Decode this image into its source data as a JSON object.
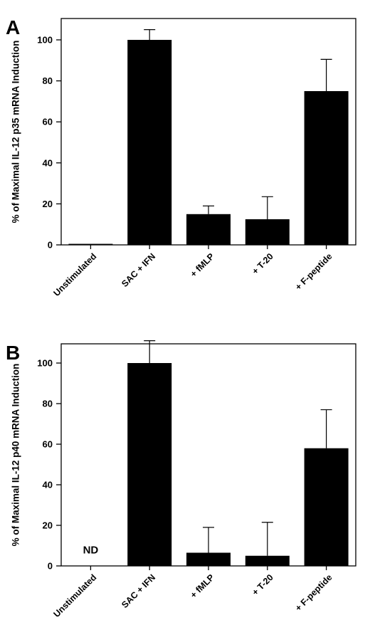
{
  "chart_data": [
    {
      "type": "bar",
      "panel_label": "A",
      "ylabel": "% of Maximal IL-12 p35 mRNA Induction",
      "xlabel": "",
      "categories": [
        "Unstimulated",
        "SAC + IFN",
        "+ fMLP",
        "+ T-20",
        "+ F-peptide"
      ],
      "values": [
        0.5,
        100,
        15,
        12.5,
        75
      ],
      "errors": [
        0,
        5,
        4,
        11,
        15.5
      ],
      "ylim": [
        0,
        100
      ],
      "yticks": [
        0,
        20,
        40,
        60,
        80,
        100
      ],
      "bar_color": "#000000",
      "annotations": []
    },
    {
      "type": "bar",
      "panel_label": "B",
      "ylabel": "% of Maximal IL-12 p40 mRNA Induction",
      "xlabel": "",
      "categories": [
        "Unstimulated",
        "SAC + IFN",
        "+ fMLP",
        "+ T-20",
        "+ F-peptide"
      ],
      "values": [
        0,
        100,
        6.5,
        5,
        58
      ],
      "errors": [
        0,
        11,
        12.5,
        16.5,
        19
      ],
      "ylim": [
        0,
        100
      ],
      "yticks": [
        0,
        20,
        40,
        60,
        80,
        100
      ],
      "bar_color": "#000000",
      "annotations": [
        {
          "category": "Unstimulated",
          "text": "ND"
        }
      ]
    }
  ]
}
